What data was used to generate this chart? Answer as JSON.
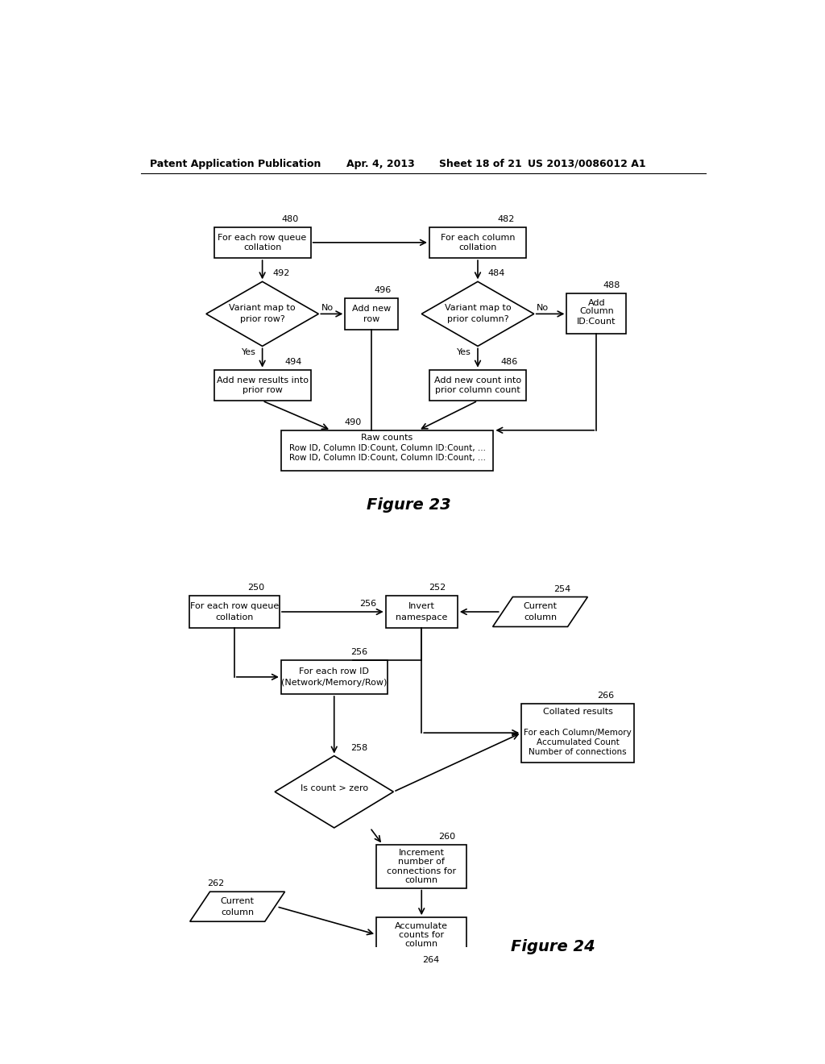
{
  "bg_color": "#ffffff",
  "header_text": "Patent Application Publication",
  "header_date": "Apr. 4, 2013",
  "header_sheet": "Sheet 18 of 21",
  "header_patent": "US 2013/0086012 A1",
  "fig23_label": "Figure 23",
  "fig24_label": "Figure 24",
  "lc": "#000000",
  "fc": "#ffffff"
}
